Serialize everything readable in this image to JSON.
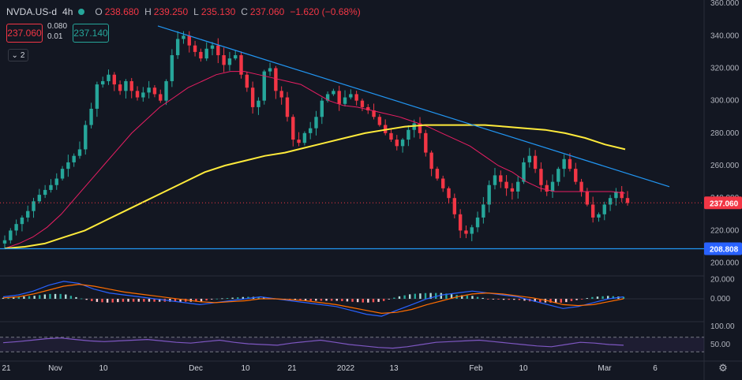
{
  "header": {
    "symbol": "NVDA.US-d",
    "interval": "4h",
    "o_label": "O",
    "o_value": "238.680",
    "h_label": "H",
    "h_value": "239.250",
    "l_label": "L",
    "l_value": "235.130",
    "c_label": "C",
    "c_value": "237.060",
    "change": "−1.620 (−0.68%)",
    "sell_price": "237.060",
    "buy_price": "237.140",
    "spread_top": "0.080",
    "spread_bottom": "0.01",
    "collapse_count": "2"
  },
  "colors": {
    "bg": "#131722",
    "up": "#26a69a",
    "down": "#f23645",
    "ma_short": "#e91e63",
    "ma_long": "#ffeb3b",
    "trendline": "#2196f3",
    "macd": "#2962ff",
    "signal": "#ff6d00",
    "rsi": "#7e57c2"
  },
  "chart_data": [
    {
      "type": "candlestick",
      "symbol": "NVDA.US-d",
      "interval": "4h",
      "y_ticks": [
        "360.000",
        "340.000",
        "320.000",
        "300.000",
        "280.000",
        "260.000",
        "240.000",
        "220.000",
        "200.000"
      ],
      "ylim": [
        193,
        362
      ],
      "x_ticks": [
        "21",
        "Nov",
        "10",
        "Dec",
        "10",
        "21",
        "2022",
        "13",
        "Feb",
        "10",
        "Mar",
        "6"
      ],
      "last_price_label": "237.060",
      "support_label": "208.808",
      "support_level": 208.8,
      "close_series": [
        214,
        220,
        224,
        228,
        232,
        238,
        242,
        245,
        248,
        252,
        258,
        262,
        266,
        270,
        285,
        295,
        310,
        312,
        316,
        310,
        306,
        312,
        306,
        302,
        305,
        308,
        304,
        300,
        312,
        328,
        338,
        340,
        334,
        330,
        326,
        332,
        334,
        328,
        322,
        326,
        328,
        316,
        308,
        296,
        300,
        318,
        320,
        306,
        302,
        290,
        276,
        274,
        280,
        283,
        290,
        300,
        304,
        306,
        298,
        302,
        304,
        300,
        296,
        294,
        290,
        285,
        280,
        276,
        272,
        276,
        282,
        286,
        280,
        268,
        258,
        252,
        246,
        240,
        230,
        220,
        218,
        222,
        228,
        236,
        248,
        254,
        250,
        246,
        244,
        250,
        262,
        266,
        258,
        248,
        244,
        250,
        258,
        264,
        258,
        250,
        244,
        236,
        228,
        230,
        236,
        240,
        244,
        240,
        237
      ],
      "series": [
        {
          "name": "MA short",
          "values": [
            209,
            212,
            216,
            222,
            230,
            240,
            250,
            260,
            270,
            280,
            288,
            296,
            302,
            308,
            312,
            316,
            318,
            318,
            316,
            314,
            312,
            310,
            305,
            300,
            297,
            296,
            294,
            292,
            290,
            287,
            284,
            280,
            276,
            272,
            266,
            260,
            256,
            250,
            246,
            244,
            244,
            244,
            244,
            244,
            243
          ]
        },
        {
          "name": "MA long",
          "values": [
            209,
            210,
            212,
            216,
            220,
            226,
            232,
            238,
            244,
            250,
            256,
            260,
            263,
            266,
            268,
            271,
            274,
            277,
            280,
            282,
            284,
            285,
            285,
            285,
            285,
            284,
            283,
            282,
            280,
            277,
            273,
            270
          ]
        }
      ],
      "trendline": {
        "from": [
          1.0,
          346
        ],
        "to": [
          1.0,
          247
        ]
      }
    },
    {
      "type": "line",
      "indicator": "MACD",
      "y_ticks": [
        "20.000",
        "0.000"
      ],
      "series": [
        {
          "name": "MACD",
          "values": [
            2,
            4,
            8,
            14,
            18,
            16,
            10,
            6,
            4,
            2,
            0,
            -2,
            -4,
            -6,
            -4,
            -2,
            0,
            2,
            0,
            -2,
            -4,
            -6,
            -8,
            -12,
            -16,
            -18,
            -12,
            -6,
            0,
            4,
            6,
            8,
            6,
            4,
            2,
            -2,
            -6,
            -10,
            -8,
            -4,
            0,
            2
          ]
        },
        {
          "name": "Signal",
          "values": [
            1,
            2,
            5,
            9,
            13,
            15,
            13,
            10,
            7,
            5,
            3,
            1,
            -1,
            -3,
            -4,
            -3,
            -2,
            0,
            0,
            -1,
            -2,
            -4,
            -6,
            -9,
            -12,
            -15,
            -14,
            -11,
            -6,
            -2,
            2,
            5,
            6,
            5,
            3,
            1,
            -2,
            -6,
            -7,
            -6,
            -3,
            0
          ]
        }
      ]
    },
    {
      "type": "line",
      "indicator": "RSI",
      "y_ticks": [
        "100.00",
        "50.00"
      ],
      "levels": [
        70,
        30
      ],
      "series": [
        {
          "name": "RSI",
          "values": [
            55,
            58,
            62,
            66,
            68,
            64,
            60,
            58,
            60,
            62,
            64,
            60,
            56,
            54,
            58,
            62,
            56,
            52,
            50,
            48,
            54,
            58,
            62,
            56,
            50,
            46,
            42,
            40,
            44,
            50,
            56,
            58,
            60,
            62,
            58,
            54,
            50,
            46,
            44,
            50,
            56,
            54,
            50,
            48
          ]
        }
      ]
    }
  ]
}
